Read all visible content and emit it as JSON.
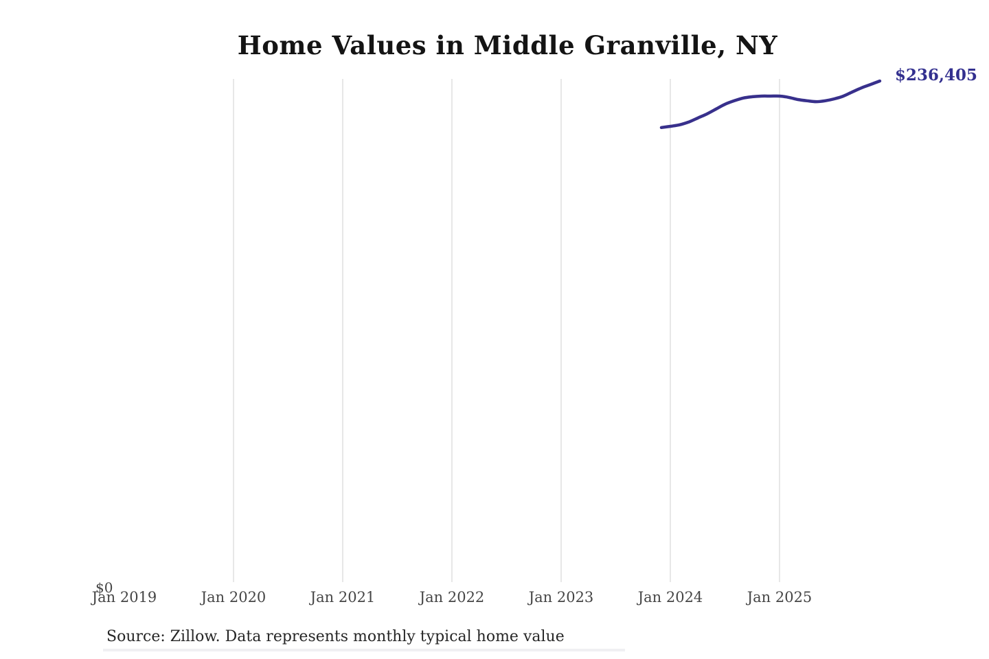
{
  "chart_data": {
    "type": "line",
    "title": "Home Values in Middle Granville, NY",
    "x": [
      "Dec 2023",
      "Jan 2024",
      "Feb 2024",
      "Mar 2024",
      "Apr 2024",
      "May 2024",
      "Jun 2024",
      "Jul 2024",
      "Aug 2024",
      "Sep 2024",
      "Oct 2024",
      "Nov 2024",
      "Dec 2024",
      "Jan 2025",
      "Feb 2025",
      "Mar 2025",
      "Apr 2025",
      "May 2025",
      "Jun 2025",
      "Jul 2025",
      "Aug 2025",
      "Sep 2025",
      "Oct 2025",
      "Nov 2025",
      "Dec 2025"
    ],
    "values": [
      214500,
      215100,
      215800,
      217100,
      219000,
      220900,
      223200,
      225500,
      227100,
      228400,
      229000,
      229300,
      229300,
      229300,
      228700,
      227700,
      227100,
      226700,
      227100,
      228000,
      229300,
      231300,
      233200,
      234800,
      236405
    ],
    "end_label": "$236,405",
    "x_tick_labels": [
      "Jan 2019",
      "Jan 2020",
      "Jan 2021",
      "Jan 2022",
      "Jan 2023",
      "Jan 2024",
      "Jan 2025"
    ],
    "y_tick_labels": [
      "$0"
    ],
    "ylabel": "",
    "xlabel": "",
    "ylim": [
      0,
      237500
    ],
    "grid": "vertical-only",
    "legend": "none",
    "line_color": "#38308c",
    "end_label_color": "#33308f",
    "gridline_color": "#cfcfcf",
    "tick_label_color": "#454545"
  },
  "footer": {
    "source": "Source: Zillow. Data represents monthly typical home value"
  }
}
